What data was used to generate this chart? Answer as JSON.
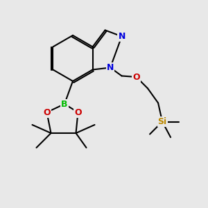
{
  "bg_color": "#e8e8e8",
  "bond_color": "#000000",
  "bond_width": 1.5,
  "atom_colors": {
    "B": "#00bb00",
    "N": "#0000dd",
    "O": "#cc0000",
    "Si": "#bb8800",
    "C": "#000000"
  },
  "figsize": [
    3.0,
    3.0
  ],
  "dpi": 100,
  "xlim": [
    0,
    10
  ],
  "ylim": [
    0,
    10
  ]
}
